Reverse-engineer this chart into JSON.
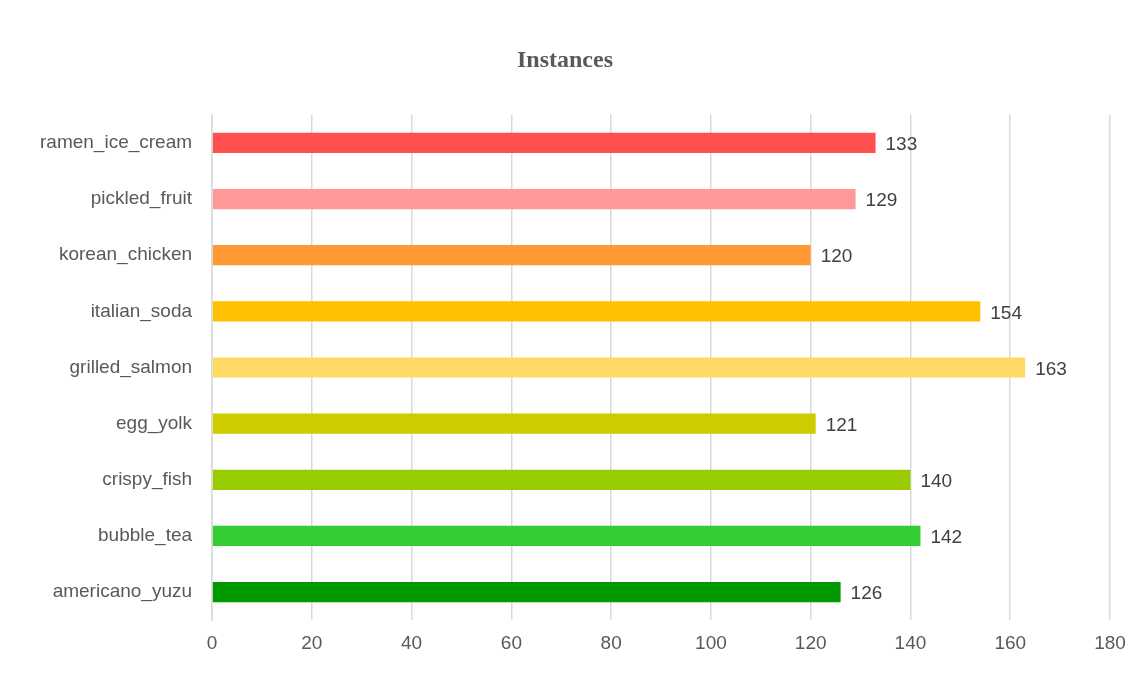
{
  "chart_data": {
    "type": "bar",
    "orientation": "horizontal",
    "title": "Instances",
    "categories": [
      "ramen_ice_cream",
      "pickled_fruit",
      "korean_chicken",
      "italian_soda",
      "grilled_salmon",
      "egg_yolk",
      "crispy_fish",
      "bubble_tea",
      "americano_yuzu"
    ],
    "values": [
      133,
      129,
      120,
      154,
      163,
      121,
      140,
      142,
      126
    ],
    "colors": [
      "#ff5050",
      "#ff9999",
      "#ff9933",
      "#ffc000",
      "#ffd966",
      "#cccc00",
      "#99cc00",
      "#33cc33",
      "#009900"
    ],
    "xlim": [
      0,
      180
    ],
    "xticks": [
      0,
      20,
      40,
      60,
      80,
      100,
      120,
      140,
      160,
      180
    ],
    "grid": "x",
    "legend": false,
    "data_labels": true
  }
}
